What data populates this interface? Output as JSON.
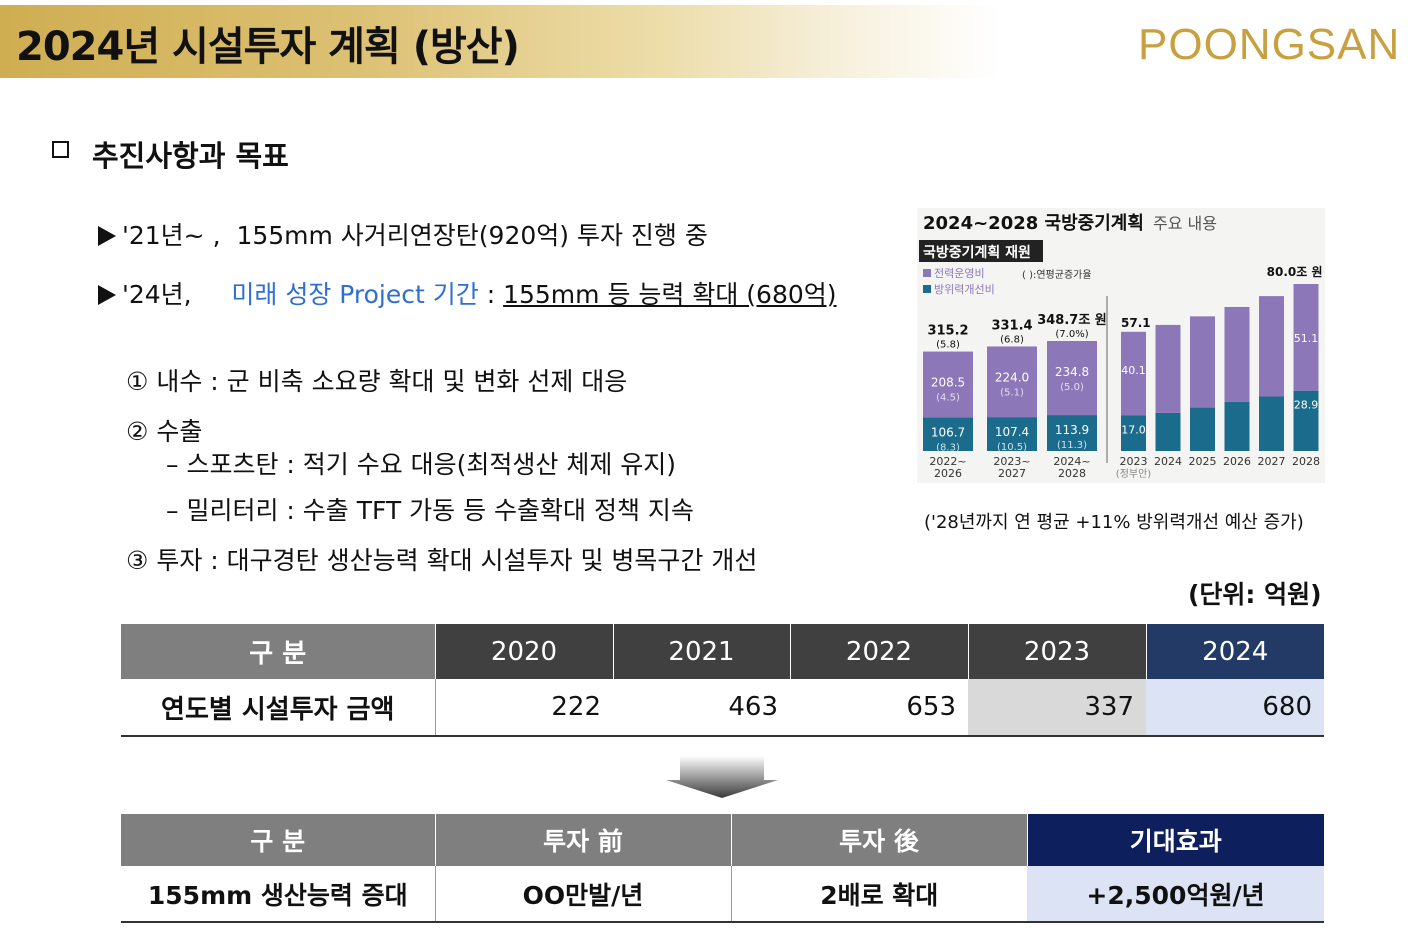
{
  "header": {
    "title": "2024년 시설투자 계획 (방산)",
    "logo_text": "POONGSAN",
    "logo_color": "#c9a040"
  },
  "section": {
    "heading": "추진사항과 목표"
  },
  "bullets": [
    {
      "prefix": "'21년~ ,",
      "text": "155mm 사거리연장탄(920억) 투자 진행 중"
    },
    {
      "prefix": "'24년,",
      "highlight": "미래 성장 Project 기간",
      "sep": " : ",
      "underlined": "155mm 등 능력 확대 (680억)"
    }
  ],
  "goals": {
    "item1": "① 내수 : 군 비축 소요량 확대 및 변화 선제 대응",
    "item2": "② 수출",
    "item2_sub1": "– 스포츠탄 : 적기 수요 대응(최적생산 체제 유지)",
    "item2_sub2": "– 밀리터리 : 수출 TFT 가동 등 수출확대 정책 지속",
    "item3": "③ 투자 : 대구경탄 생산능력 확대 시설투자 및 병목구간 개선"
  },
  "chart_data": {
    "type": "bar",
    "title": "2024~2028 국방중기계획",
    "subtitle": "주요 내용",
    "badge": "국방중기계획 재원",
    "legend": [
      "전력운영비",
      "방위력개선비"
    ],
    "legend_note": "( ):연평균증가율",
    "colors": {
      "operation": "#8c78b8",
      "improvement": "#1b6b8c"
    },
    "plans": {
      "categories": [
        "2022~ 2026",
        "2023~ 2027",
        "2024~ 2028"
      ],
      "total_labels": [
        "315.2",
        "331.4",
        "348.7조 원"
      ],
      "total_growth": [
        "(5.8)",
        "(6.8)",
        "(7.0%)"
      ],
      "totals": [
        315.2,
        331.4,
        348.7
      ],
      "operation_labels": [
        "208.5",
        "224.0",
        "234.8"
      ],
      "operation_growth": [
        "(4.5)",
        "(5.1)",
        "(5.0)"
      ],
      "operation": [
        208.5,
        224.0,
        234.8
      ],
      "improvement_labels": [
        "106.7",
        "107.4",
        "113.9"
      ],
      "improvement_growth": [
        "(8.3)",
        "(10.5)",
        "(11.3)"
      ],
      "improvement": [
        106.7,
        107.4,
        113.9
      ]
    },
    "yearly": {
      "categories": [
        "2023",
        "2024",
        "2025",
        "2026",
        "2027",
        "2028"
      ],
      "note": "(정부안)",
      "first_total": "57.1",
      "first_operation": "40.1",
      "first_improvement": "17.0",
      "last_total": "80.0조 원",
      "last_operation": "51.1",
      "last_improvement": "28.9",
      "totals": [
        57.1,
        60.4,
        64.5,
        69.0,
        74.2,
        80.0
      ],
      "improvement": [
        17.0,
        18.3,
        20.8,
        23.5,
        26.1,
        28.9
      ]
    },
    "caption": "('28년까지 연 평균 +11% 방위력개선 예산 증가)"
  },
  "unit": "(단위: 억원)",
  "table1": {
    "header_label": "구  분",
    "years": [
      "2020",
      "2021",
      "2022",
      "2023",
      "2024"
    ],
    "row_label": "연도별 시설투자 금액",
    "values": [
      "222",
      "463",
      "653",
      "337",
      "680"
    ]
  },
  "table2": {
    "headers": [
      "구  분",
      "투자 前",
      "투자 後",
      "기대효과"
    ],
    "row": [
      "155mm 생산능력 증대",
      "OO만발/년",
      "2배로 확대",
      "+2,500억원/년"
    ]
  }
}
